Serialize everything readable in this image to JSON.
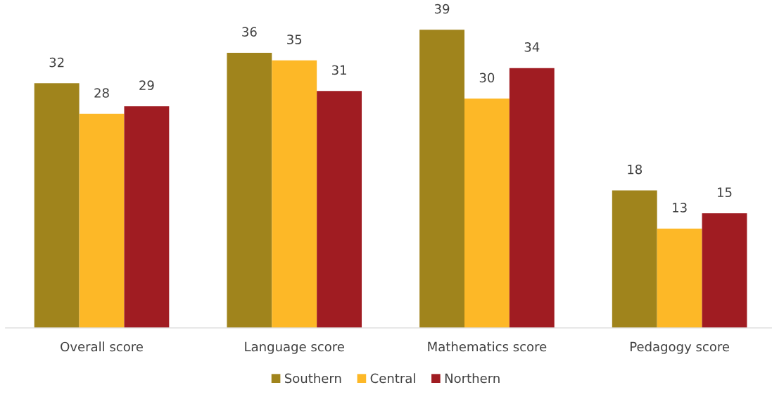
{
  "chart_data": {
    "type": "bar",
    "categories": [
      "Overall score",
      "Language score",
      "Mathematics score",
      "Pedagogy score"
    ],
    "series": [
      {
        "name": "Southern",
        "color": "#a0841c",
        "values": [
          32,
          36,
          39,
          18
        ]
      },
      {
        "name": "Central",
        "color": "#fdb827",
        "values": [
          28,
          35,
          30,
          13
        ]
      },
      {
        "name": "Northern",
        "color": "#a01c22",
        "values": [
          29,
          31,
          34,
          15
        ]
      }
    ],
    "tick_labels": "x",
    "data_labels": true,
    "legend": "bottom",
    "grid": false
  }
}
